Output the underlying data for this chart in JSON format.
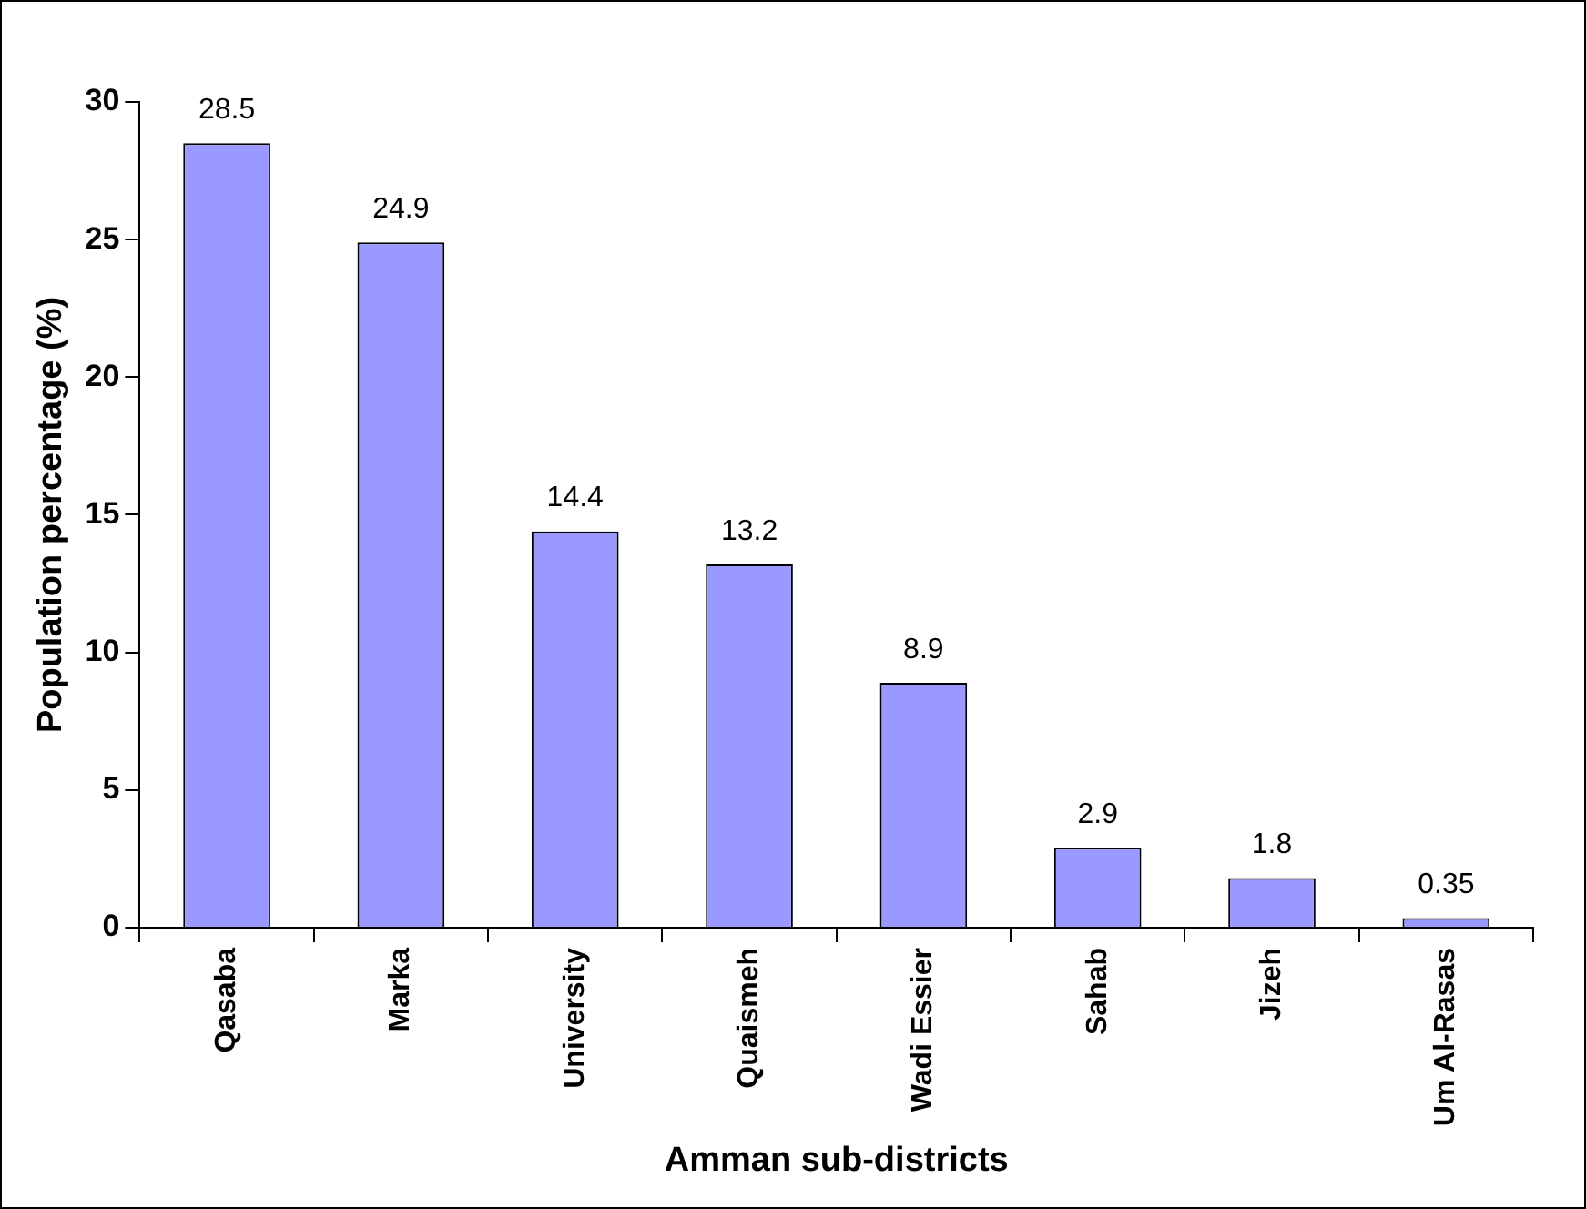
{
  "chart_data": {
    "type": "bar",
    "xlabel": "Amman sub-districts",
    "ylabel": "Population percentage (%)",
    "categories": [
      "Qasaba",
      "Marka",
      "University",
      "Quaismeh",
      "Wadi Essier",
      "Sahab",
      "Jizeh",
      "Um Al-Rasas"
    ],
    "values": [
      28.5,
      24.9,
      14.4,
      13.2,
      8.9,
      2.9,
      1.8,
      0.35
    ],
    "color": "#9999ff",
    "ylim": [
      0,
      30
    ],
    "yticks": [
      0,
      5,
      10,
      15,
      20,
      25,
      30
    ],
    "grid": false,
    "legend": false,
    "data_labels": true
  }
}
